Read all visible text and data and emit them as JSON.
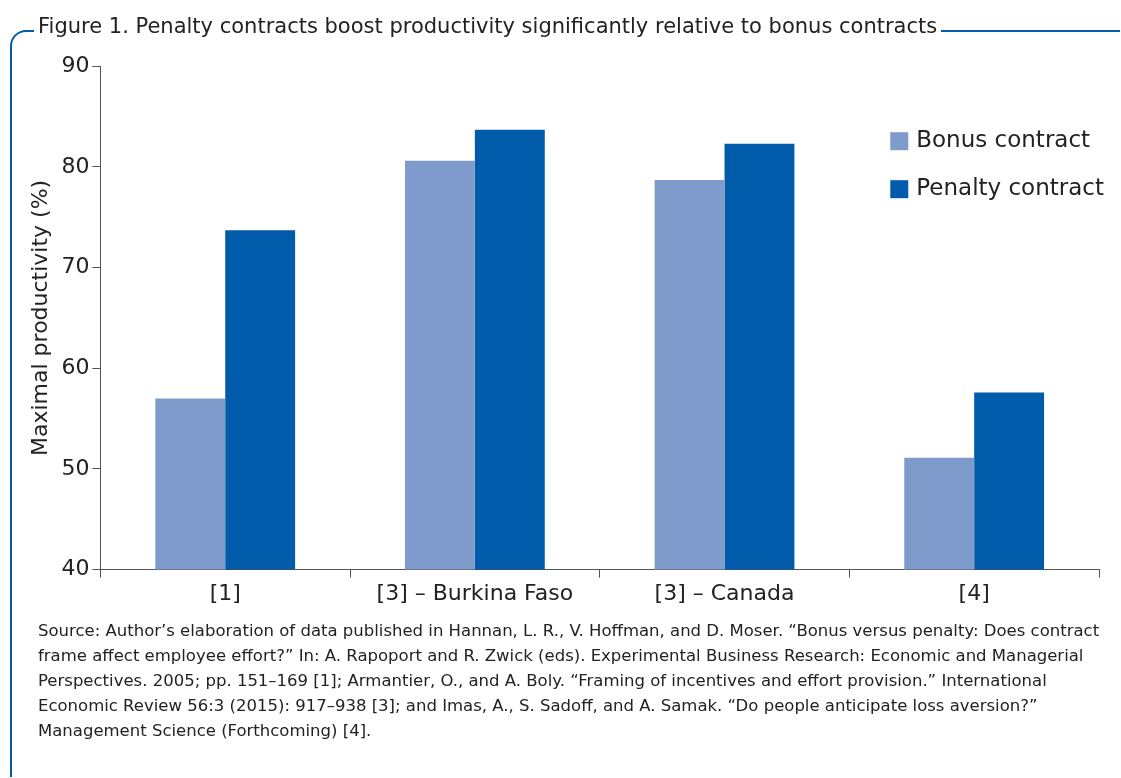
{
  "chart_data": {
    "type": "bar",
    "title": "Figure 1. Penalty contracts boost productivity significantly relative to bonus contracts",
    "ylabel": "Maximal productivity (%)",
    "categories": [
      "[1]",
      "[3] – Burkina Faso",
      "[3] – Canada",
      "[4]"
    ],
    "series": [
      {
        "name": "Bonus contract",
        "color": "#7f9bcc",
        "values": [
          57,
          80.6,
          78.7,
          51.1
        ]
      },
      {
        "name": "Penalty contract",
        "color": "#005baa",
        "values": [
          73.7,
          83.7,
          82.3,
          57.6
        ]
      }
    ],
    "ylim": [
      40,
      90
    ],
    "yticks": [
      40,
      50,
      60,
      70,
      80,
      90
    ],
    "grid": false,
    "legend": "top right",
    "annotations": [
      "Source: Author’s elaboration of data published in Hannan, L. R., V. Hoffman, and D. Moser. “Bonus versus penalty: Does contract frame affect employee effort?” In: A. Rapoport and R. Zwick (eds). Experimental Business Research: Economic and Managerial Perspectives. 2005; pp. 151–169 [1]; Armantier, O., and A. Boly. “Framing of incentives and effort provision.” International Economic Review 56:3 (2015): 917–938 [3]; and Imas, A., S. Sadoff, and A. Samak. “Do people anticipate loss aversion?” Management Science (Forthcoming) [4]."
    ]
  }
}
